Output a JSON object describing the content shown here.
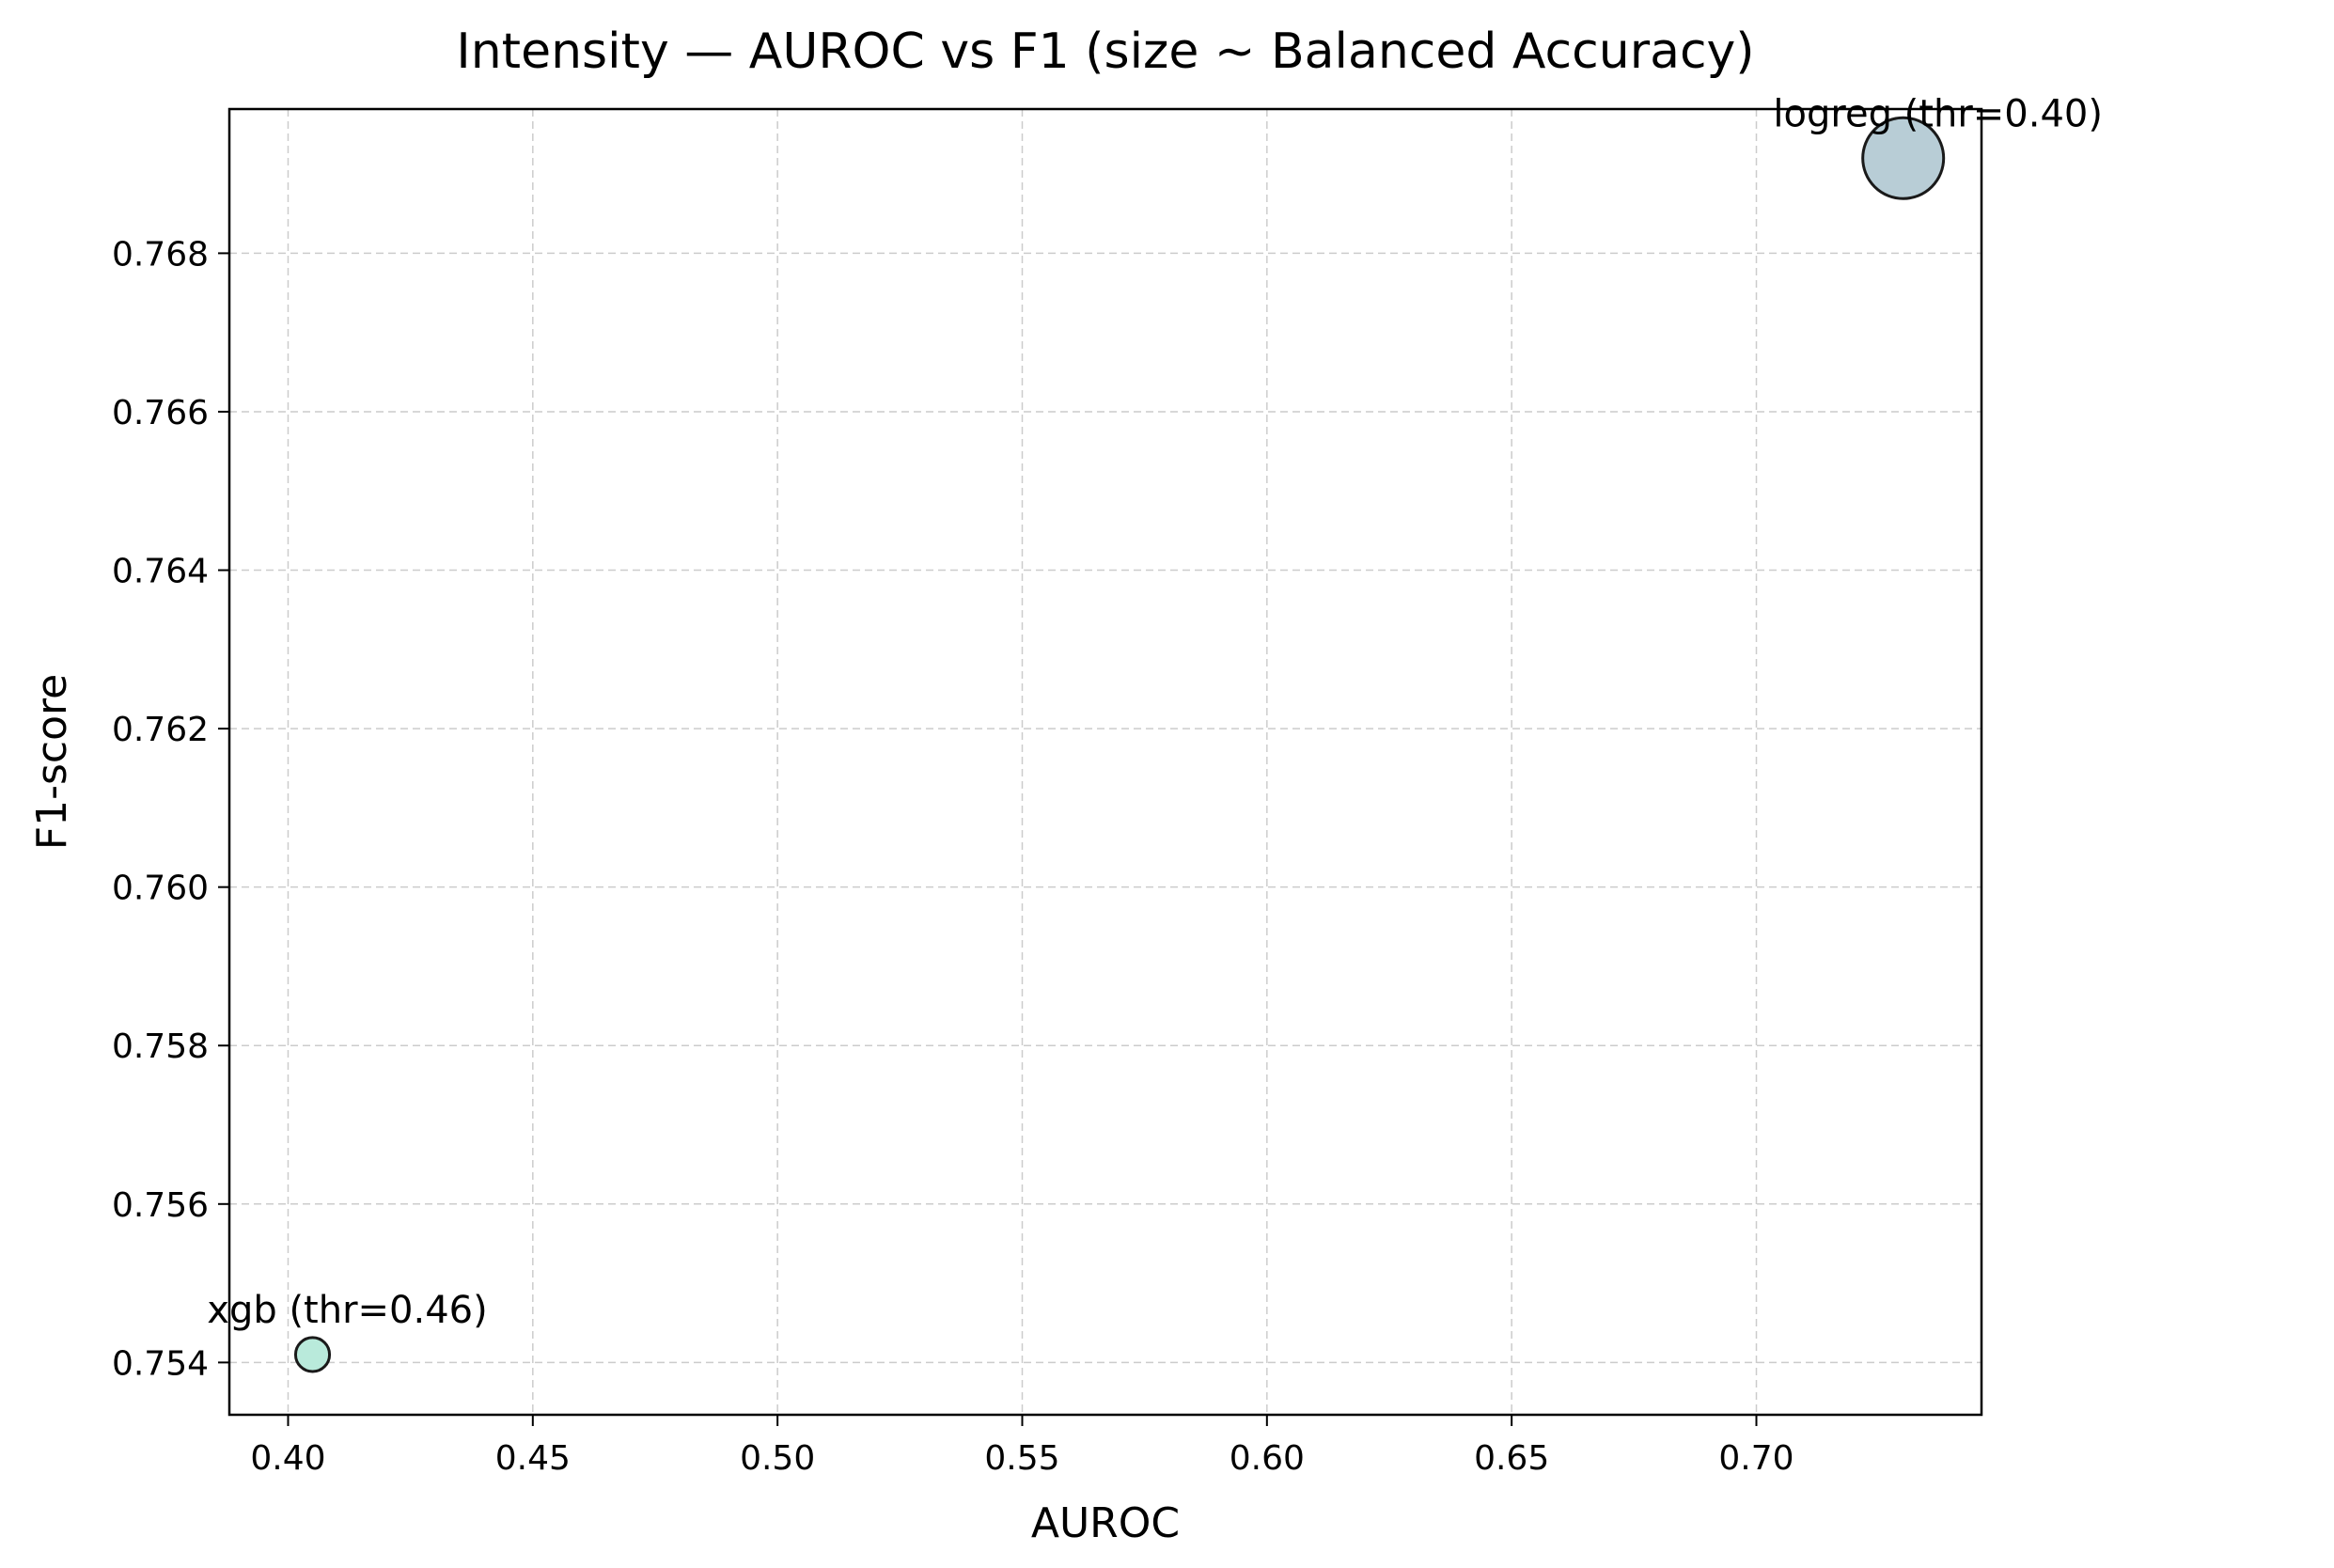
{
  "chart_data": {
    "type": "scatter",
    "title": "Intensity — AUROC vs F1 (size ~ Balanced Accuracy)",
    "xlabel": "AUROC",
    "ylabel": "F1-score",
    "xlim": [
      0.388,
      0.746
    ],
    "ylim": [
      0.75334,
      0.76982
    ],
    "xticks": [
      0.4,
      0.45,
      0.5,
      0.55,
      0.6,
      0.65,
      0.7
    ],
    "xtick_labels": [
      "0.40",
      "0.45",
      "0.50",
      "0.55",
      "0.60",
      "0.65",
      "0.70"
    ],
    "yticks": [
      0.754,
      0.756,
      0.758,
      0.76,
      0.762,
      0.764,
      0.766,
      0.768
    ],
    "ytick_labels": [
      "0.754",
      "0.756",
      "0.758",
      "0.760",
      "0.762",
      "0.764",
      "0.766",
      "0.768"
    ],
    "grid": true,
    "size_encoding": "Balanced Accuracy",
    "points": [
      {
        "label": "logreg (thr=0.40)",
        "x": 0.73,
        "y": 0.7692,
        "relative_size": 1.0,
        "color": "#b8cdd6"
      },
      {
        "label": "xgb (thr=0.46)",
        "x": 0.405,
        "y": 0.7541,
        "relative_size": 0.42,
        "color": "#b9eadb"
      }
    ]
  }
}
